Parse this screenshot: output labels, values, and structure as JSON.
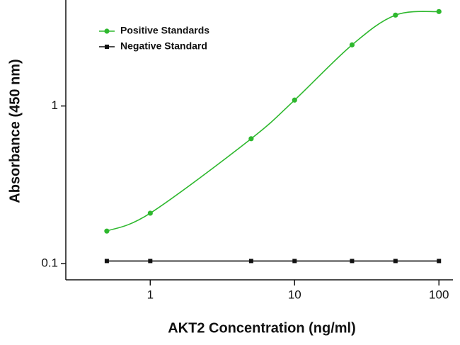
{
  "chart_data": {
    "type": "scatter",
    "x_label": "AKT2 Concentration (ng/ml)",
    "y_label": "Absorbance (450 nm)",
    "x": [
      0.5,
      1,
      5,
      10,
      25,
      50,
      100
    ],
    "series": [
      {
        "name": "Positive Standards",
        "color": "#2eb82e",
        "values": [
          0.161,
          0.209,
          0.62,
          1.09,
          2.44,
          3.77,
          3.97
        ]
      },
      {
        "name": "Negative Standard",
        "color": "#111111",
        "values": [
          0.104,
          0.104,
          0.104,
          0.104,
          0.104,
          0.104,
          0.104
        ]
      }
    ],
    "xlim": [
      0.26,
      125
    ],
    "ylim": [
      0.079,
      4.7
    ],
    "xticks": [
      1,
      10,
      100
    ],
    "yticks": [
      0.1,
      1
    ],
    "log_x": true,
    "log_y": true,
    "grid": false,
    "legend": "upper left"
  }
}
